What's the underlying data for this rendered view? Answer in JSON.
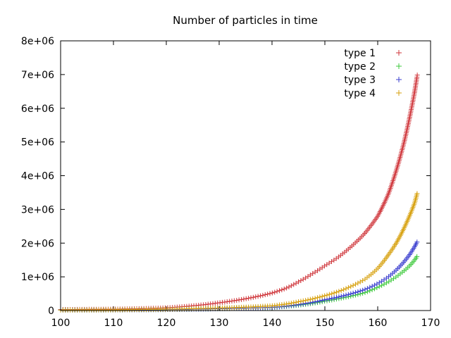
{
  "chart_data": {
    "type": "scatter",
    "title": "Number of particles in time",
    "xlabel": "",
    "ylabel": "",
    "xlim": [
      100,
      170
    ],
    "ylim": [
      0,
      8000000
    ],
    "xticks": [
      {
        "value": 100,
        "label": "100"
      },
      {
        "value": 110,
        "label": "110"
      },
      {
        "value": 120,
        "label": "120"
      },
      {
        "value": 130,
        "label": "130"
      },
      {
        "value": 140,
        "label": "140"
      },
      {
        "value": 150,
        "label": "150"
      },
      {
        "value": 160,
        "label": "160"
      },
      {
        "value": 170,
        "label": "170"
      }
    ],
    "yticks": [
      {
        "value": 0,
        "label": "0"
      },
      {
        "value": 1000000,
        "label": "1e+06"
      },
      {
        "value": 2000000,
        "label": "2e+06"
      },
      {
        "value": 3000000,
        "label": "3e+06"
      },
      {
        "value": 4000000,
        "label": "4e+06"
      },
      {
        "value": 5000000,
        "label": "5e+06"
      },
      {
        "value": 6000000,
        "label": "6e+06"
      },
      {
        "value": 7000000,
        "label": "7e+06"
      },
      {
        "value": 8000000,
        "label": "8e+06"
      }
    ],
    "grid": false,
    "legend_position": "top-right",
    "marker": "+",
    "series": [
      {
        "name": "type 1",
        "color": "#d0393e",
        "x": [
          100,
          105,
          110,
          115,
          120,
          125,
          130,
          135,
          140,
          142.5,
          145,
          147.5,
          150,
          152.5,
          155,
          157.5,
          160,
          162,
          163.5,
          165,
          166,
          167,
          167.5
        ],
        "y": [
          30000,
          35000,
          40000,
          55000,
          80000,
          140000,
          230000,
          350000,
          520000,
          650000,
          850000,
          1080000,
          1330000,
          1580000,
          1900000,
          2280000,
          2800000,
          3450000,
          4150000,
          5000000,
          5700000,
          6500000,
          7000000
        ]
      },
      {
        "name": "type 2",
        "color": "#3ec93c",
        "x": [
          100,
          105,
          110,
          115,
          120,
          125,
          130,
          135,
          140,
          142.5,
          145,
          147.5,
          150,
          152.5,
          155,
          157.5,
          160,
          162,
          163.5,
          165,
          166,
          167,
          167.5
        ],
        "y": [
          15000,
          15000,
          18000,
          22000,
          30000,
          40000,
          55000,
          70000,
          90000,
          120000,
          160000,
          210000,
          280000,
          350000,
          430000,
          530000,
          690000,
          850000,
          1000000,
          1180000,
          1320000,
          1500000,
          1620000
        ]
      },
      {
        "name": "type 3",
        "color": "#3b3fcf",
        "x": [
          100,
          105,
          110,
          115,
          120,
          125,
          130,
          135,
          140,
          142.5,
          145,
          147.5,
          150,
          152.5,
          155,
          157.5,
          160,
          162,
          163.5,
          165,
          166,
          167,
          167.5
        ],
        "y": [
          15000,
          15000,
          18000,
          22000,
          30000,
          40000,
          55000,
          70000,
          95000,
          130000,
          180000,
          240000,
          320000,
          400000,
          500000,
          620000,
          800000,
          1000000,
          1200000,
          1450000,
          1650000,
          1900000,
          2050000
        ]
      },
      {
        "name": "type 4",
        "color": "#d7a10f",
        "x": [
          100,
          105,
          110,
          115,
          120,
          125,
          130,
          135,
          140,
          142.5,
          145,
          147.5,
          150,
          152.5,
          155,
          157.5,
          160,
          162,
          163.5,
          165,
          166,
          167,
          167.5
        ],
        "y": [
          15000,
          18000,
          22000,
          30000,
          40000,
          55000,
          75000,
          100000,
          140000,
          190000,
          260000,
          340000,
          440000,
          560000,
          720000,
          920000,
          1250000,
          1650000,
          2000000,
          2450000,
          2800000,
          3200000,
          3500000
        ]
      }
    ]
  }
}
